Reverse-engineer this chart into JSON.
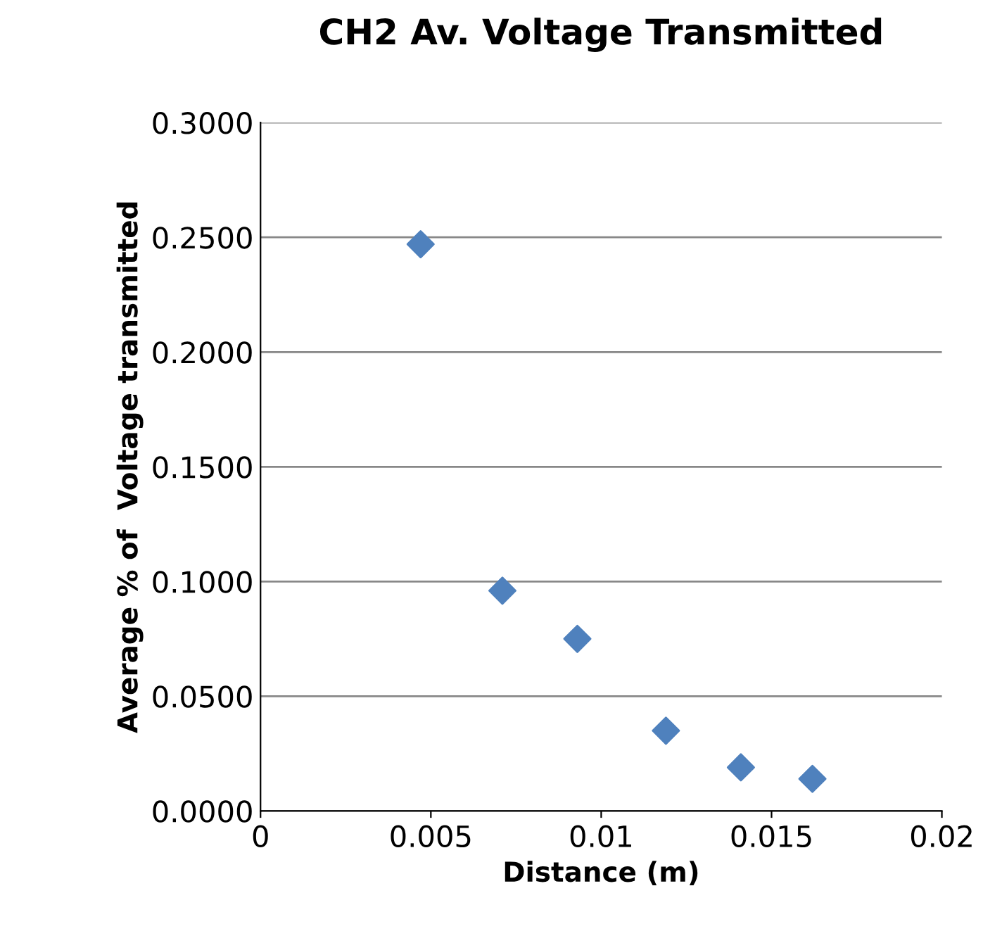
{
  "chart_data": {
    "type": "scatter",
    "title": "CH2 Av. Voltage Transmitted",
    "xlabel": "Distance (m)",
    "ylabel": "Average % of  Voltage transmitted",
    "x": [
      0.0047,
      0.0071,
      0.0093,
      0.0119,
      0.0141,
      0.0162
    ],
    "series": [
      {
        "color": "#4f81bd",
        "values": [
          0.247,
          0.096,
          0.075,
          0.035,
          0.019,
          0.014
        ]
      }
    ],
    "xlim": [
      0,
      0.02
    ],
    "xticks": [
      0,
      0.005,
      0.01,
      0.015,
      0.02
    ],
    "ylim": [
      0,
      0.3
    ],
    "yticks": [
      {
        "value": 0,
        "label": "0.0000"
      },
      {
        "value": 0.05,
        "label": "0.0500"
      },
      {
        "value": 0.1,
        "label": "0.1000"
      },
      {
        "value": 0.15,
        "label": "0.1500"
      },
      {
        "value": 0.2,
        "label": "0.2000"
      },
      {
        "value": 0.25,
        "label": "0.2500"
      },
      {
        "value": 0.3,
        "label": "0.3000"
      }
    ],
    "grid": "y",
    "marker": "diamond",
    "legend": false
  }
}
